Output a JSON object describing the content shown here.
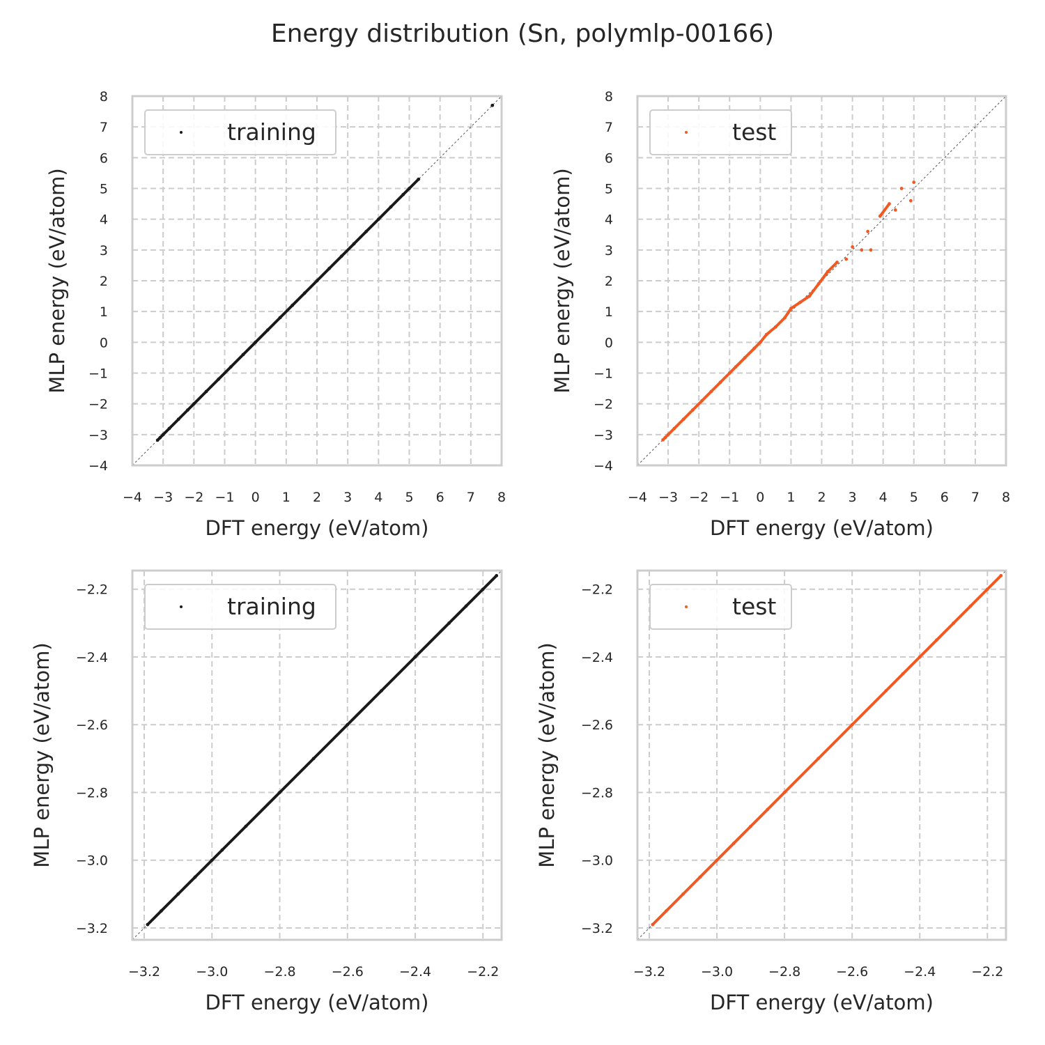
{
  "figure": {
    "title": "Energy distribution (Sn, polymlp-00166)"
  },
  "colors": {
    "training": "#1a1a1a",
    "test": "#f05a22",
    "diagonal": "#555555",
    "grid": "#cccccc"
  },
  "chart_data": [
    {
      "type": "scatter",
      "position": "top-left",
      "xlabel": "DFT energy (eV/atom)",
      "ylabel": "MLP energy (eV/atom)",
      "xlim": [
        -4,
        8
      ],
      "ylim": [
        -4,
        8
      ],
      "xticks": [
        "−4",
        "−3",
        "−2",
        "−1",
        "0",
        "1",
        "2",
        "3",
        "4",
        "5",
        "6",
        "7",
        "8"
      ],
      "yticks": [
        "8",
        "7",
        "6",
        "5",
        "4",
        "3",
        "2",
        "1",
        "0",
        "−1",
        "−2",
        "−3",
        "−4"
      ],
      "grid": true,
      "legend": "upper-left",
      "reference_line": "y = x",
      "series": [
        {
          "name": "training",
          "color": "#1a1a1a",
          "x": [
            -3.18,
            -3.1,
            -3.0,
            -2.8,
            -2.5,
            -2.2,
            -2.0,
            -1.6,
            -1.2,
            -0.8,
            -0.4,
            0.0,
            0.4,
            0.8,
            1.2,
            1.6,
            2.0,
            2.4,
            2.8,
            3.2,
            3.6,
            4.0,
            4.4,
            4.8,
            5.0,
            5.3,
            7.7
          ],
          "y": [
            -3.18,
            -3.1,
            -3.0,
            -2.8,
            -2.5,
            -2.2,
            -2.0,
            -1.6,
            -1.2,
            -0.8,
            -0.4,
            0.0,
            0.4,
            0.8,
            1.2,
            1.6,
            2.0,
            2.4,
            2.8,
            3.2,
            3.6,
            4.0,
            4.4,
            4.8,
            5.0,
            5.3,
            7.7
          ]
        }
      ]
    },
    {
      "type": "scatter",
      "position": "top-right",
      "xlabel": "DFT energy (eV/atom)",
      "ylabel": "MLP energy (eV/atom)",
      "xlim": [
        -4,
        8
      ],
      "ylim": [
        -4,
        8
      ],
      "xticks": [
        "−4",
        "−3",
        "−2",
        "−1",
        "0",
        "1",
        "2",
        "3",
        "4",
        "5",
        "6",
        "7",
        "8"
      ],
      "yticks": [
        "8",
        "7",
        "6",
        "5",
        "4",
        "3",
        "2",
        "1",
        "0",
        "−1",
        "−2",
        "−3",
        "−4"
      ],
      "grid": true,
      "legend": "upper-left",
      "reference_line": "y = x",
      "series": [
        {
          "name": "test",
          "color": "#f05a22",
          "x": [
            -3.17,
            -3.1,
            -3.0,
            -2.8,
            -2.5,
            -2.2,
            -1.9,
            -1.6,
            -1.3,
            -1.0,
            -0.8,
            -0.5,
            -0.2,
            0.0,
            0.2,
            0.5,
            0.8,
            1.0,
            1.3,
            1.6,
            1.9,
            2.2,
            2.5,
            2.8,
            3.0,
            3.3,
            3.5,
            3.6,
            3.9,
            4.2,
            4.4,
            4.6,
            4.9,
            5.0
          ],
          "y": [
            -3.17,
            -3.1,
            -3.0,
            -2.8,
            -2.5,
            -2.2,
            -1.9,
            -1.6,
            -1.3,
            -1.0,
            -0.8,
            -0.5,
            -0.2,
            0.0,
            0.25,
            0.5,
            0.8,
            1.1,
            1.3,
            1.5,
            1.9,
            2.3,
            2.6,
            2.7,
            3.1,
            3.0,
            3.6,
            3.0,
            4.1,
            4.5,
            4.3,
            5.0,
            4.6,
            5.2
          ]
        }
      ]
    },
    {
      "type": "scatter",
      "position": "bottom-left",
      "xlabel": "DFT energy (eV/atom)",
      "ylabel": "MLP energy (eV/atom)",
      "xlim": [
        -3.235,
        -2.145
      ],
      "ylim": [
        -3.235,
        -2.145
      ],
      "xticks": [
        "−3.2",
        "−3.0",
        "−2.8",
        "−2.6",
        "−2.4",
        "−2.2"
      ],
      "yticks": [
        "−2.2",
        "−2.4",
        "−2.6",
        "−2.8",
        "−3.0",
        "−3.2"
      ],
      "grid": true,
      "legend": "upper-left",
      "reference_line": "y = x",
      "series": [
        {
          "name": "training",
          "color": "#1a1a1a",
          "x": [
            -3.19,
            -3.15,
            -3.1,
            -3.05,
            -3.0,
            -2.97,
            -2.9,
            -2.8,
            -2.7,
            -2.6,
            -2.5,
            -2.4,
            -2.3,
            -2.25,
            -2.2,
            -2.16
          ],
          "y": [
            -3.19,
            -3.15,
            -3.1,
            -3.05,
            -3.0,
            -2.97,
            -2.9,
            -2.8,
            -2.7,
            -2.6,
            -2.5,
            -2.4,
            -2.3,
            -2.25,
            -2.2,
            -2.16
          ]
        }
      ]
    },
    {
      "type": "scatter",
      "position": "bottom-right",
      "xlabel": "DFT energy (eV/atom)",
      "ylabel": "MLP energy (eV/atom)",
      "xlim": [
        -3.235,
        -2.145
      ],
      "ylim": [
        -3.235,
        -2.145
      ],
      "xticks": [
        "−3.2",
        "−3.0",
        "−2.8",
        "−2.6",
        "−2.4",
        "−2.2"
      ],
      "yticks": [
        "−2.2",
        "−2.4",
        "−2.6",
        "−2.8",
        "−3.0",
        "−3.2"
      ],
      "grid": true,
      "legend": "upper-left",
      "reference_line": "y = x",
      "series": [
        {
          "name": "test",
          "color": "#f05a22",
          "x": [
            -3.19,
            -3.15,
            -3.1,
            -3.05,
            -3.0,
            -2.95,
            -2.9,
            -2.85,
            -2.8,
            -2.7,
            -2.6,
            -2.5,
            -2.45,
            -2.4,
            -2.35,
            -2.3,
            -2.25,
            -2.2,
            -2.16
          ],
          "y": [
            -3.19,
            -3.15,
            -3.1,
            -3.05,
            -3.0,
            -2.95,
            -2.9,
            -2.85,
            -2.8,
            -2.7,
            -2.6,
            -2.5,
            -2.45,
            -2.4,
            -2.35,
            -2.3,
            -2.25,
            -2.2,
            -2.16
          ]
        }
      ]
    }
  ]
}
